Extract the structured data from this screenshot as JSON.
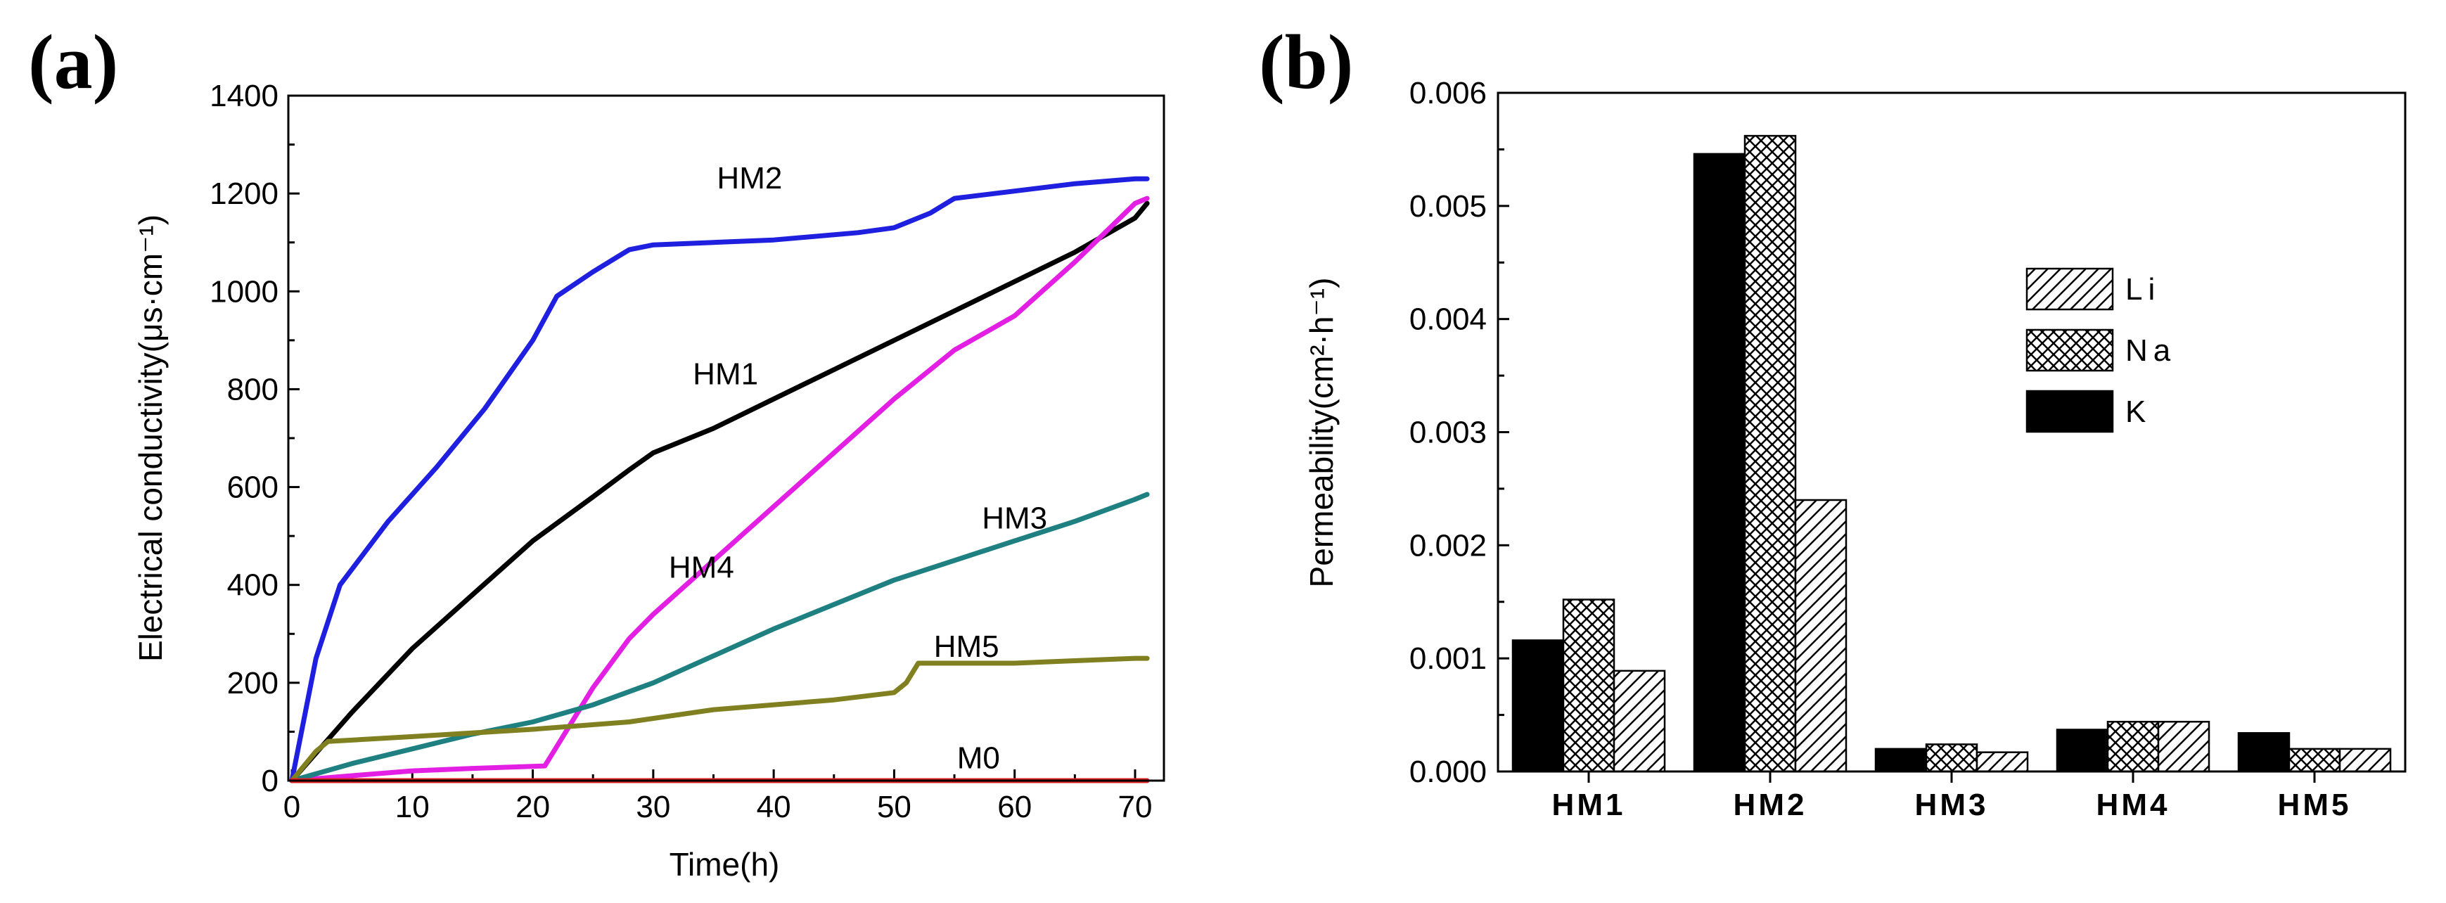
{
  "chart_data": [
    {
      "type": "line",
      "panel_label": "(a)",
      "xlabel": "Time(h)",
      "ylabel": "Electrical conductivity(μs·cm⁻¹)",
      "xlim": [
        0,
        72
      ],
      "ylim": [
        0,
        1400
      ],
      "xticks": [
        0,
        10,
        20,
        30,
        40,
        50,
        60,
        70
      ],
      "yticks": [
        0,
        200,
        400,
        600,
        800,
        1000,
        1200,
        1400
      ],
      "series": [
        {
          "name": "HM2",
          "color": "#1f1fe0",
          "x": [
            0,
            2,
            4,
            8,
            12,
            16,
            20,
            22,
            25,
            28,
            30,
            35,
            40,
            47,
            50,
            53,
            55,
            60,
            65,
            70,
            71
          ],
          "y": [
            0,
            250,
            400,
            530,
            640,
            760,
            900,
            990,
            1040,
            1085,
            1095,
            1100,
            1105,
            1120,
            1130,
            1160,
            1190,
            1205,
            1220,
            1230,
            1230
          ],
          "label_pos": [
            38,
            1210
          ]
        },
        {
          "name": "HM1",
          "color": "#000000",
          "x": [
            0,
            5,
            10,
            15,
            20,
            25,
            28,
            30,
            35,
            40,
            45,
            50,
            55,
            60,
            65,
            70,
            71
          ],
          "y": [
            0,
            140,
            270,
            380,
            490,
            580,
            635,
            670,
            720,
            780,
            840,
            900,
            960,
            1020,
            1080,
            1150,
            1180
          ],
          "label_pos": [
            36,
            810
          ]
        },
        {
          "name": "HM4",
          "color": "#e31fe3",
          "x": [
            0,
            5,
            10,
            15,
            21,
            22,
            25,
            28,
            30,
            35,
            40,
            45,
            50,
            55,
            60,
            65,
            70,
            71
          ],
          "y": [
            0,
            10,
            20,
            25,
            30,
            70,
            190,
            290,
            340,
            450,
            560,
            670,
            780,
            880,
            950,
            1060,
            1180,
            1190
          ],
          "label_pos": [
            34,
            415
          ]
        },
        {
          "name": "HM3",
          "color": "#1e8080",
          "x": [
            0,
            5,
            10,
            15,
            20,
            25,
            30,
            35,
            40,
            45,
            50,
            55,
            60,
            65,
            70,
            71
          ],
          "y": [
            0,
            35,
            65,
            95,
            120,
            155,
            200,
            255,
            310,
            360,
            410,
            450,
            490,
            530,
            575,
            585
          ],
          "label_pos": [
            60,
            515
          ]
        },
        {
          "name": "HM5",
          "color": "#808020",
          "x": [
            0,
            2,
            3,
            10,
            20,
            28,
            35,
            45,
            50,
            51,
            52,
            55,
            60,
            65,
            70,
            71
          ],
          "y": [
            0,
            60,
            80,
            90,
            105,
            120,
            145,
            165,
            180,
            200,
            240,
            240,
            240,
            245,
            250,
            250
          ],
          "label_pos": [
            56,
            253
          ]
        },
        {
          "name": "M0",
          "color": "#e02020",
          "x": [
            0,
            71
          ],
          "y": [
            0,
            0
          ],
          "label_pos": [
            57,
            25
          ]
        }
      ]
    },
    {
      "type": "bar",
      "panel_label": "(b)",
      "xlabel": "",
      "ylabel": "Permeability(cm²·h⁻¹)",
      "ylim": [
        0,
        0.006
      ],
      "yticks": [
        "0.000",
        "0.001",
        "0.002",
        "0.003",
        "0.004",
        "0.005",
        "0.006"
      ],
      "categories": [
        "HM1",
        "HM2",
        "HM3",
        "HM4",
        "HM5"
      ],
      "legend_order": [
        "Li",
        "Na",
        "K"
      ],
      "series": [
        {
          "name": "K",
          "pattern": "solid",
          "values": [
            0.00116,
            0.00546,
            0.0002,
            0.00037,
            0.00034
          ]
        },
        {
          "name": "Na",
          "pattern": "crosshatch",
          "values": [
            0.00152,
            0.00562,
            0.00024,
            0.00044,
            0.0002
          ]
        },
        {
          "name": "Li",
          "pattern": "diagonal",
          "values": [
            0.00089,
            0.0024,
            0.00017,
            0.00044,
            0.0002
          ]
        }
      ]
    }
  ]
}
